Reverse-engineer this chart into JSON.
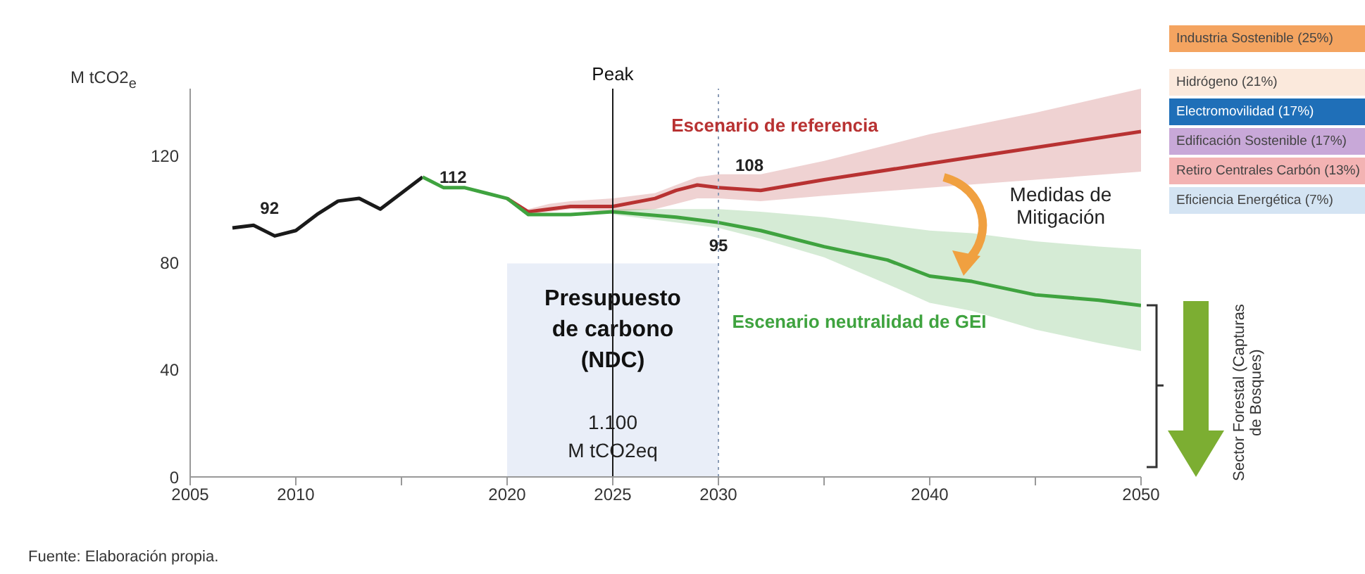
{
  "chart_data": [
    {
      "type": "line",
      "ylabel": "M tCO2$_{e}$",
      "xlim": [
        2005,
        2050
      ],
      "xticks": [
        2005,
        2010,
        {
          "value": 2015,
          "label": null
        },
        2020,
        2025,
        2030,
        {
          "value": 2035,
          "label": null
        },
        2040,
        {
          "value": 2045,
          "label": null
        },
        2050
      ],
      "ylim": [
        0,
        145
      ],
      "yticks": [
        0,
        40,
        80,
        120
      ],
      "series": [
        {
          "color": "#1a1a1a",
          "x": [
            2007,
            2008,
            2009,
            2010,
            2011,
            2012,
            2013,
            2014,
            2015,
            2016
          ],
          "values": [
            93,
            94,
            90,
            92,
            98,
            103,
            104,
            100,
            106,
            112
          ]
        },
        {
          "name": "Escenario de referencia",
          "color": "#b83232",
          "x": [
            2020,
            2021,
            2022,
            2023,
            2025,
            2027,
            2028,
            2029,
            2030,
            2032,
            2035,
            2040,
            2045,
            2050
          ],
          "values": [
            104,
            99,
            100,
            101,
            101,
            104,
            107,
            109,
            108,
            107,
            111,
            117,
            123,
            129
          ],
          "lower": [
            null,
            98,
            99,
            100,
            99,
            100,
            102,
            104,
            104,
            103,
            105,
            108,
            111,
            114
          ],
          "upper": [
            null,
            100,
            102,
            103,
            104,
            106,
            109,
            112,
            113,
            113,
            118,
            128,
            136,
            145
          ]
        },
        {
          "name": "Escenario neutralidad de GEI",
          "color": "#3fa33f",
          "x": [
            2016,
            2017,
            2018,
            2019,
            2020,
            2021,
            2023,
            2025,
            2028,
            2030,
            2032,
            2035,
            2038,
            2040,
            2042,
            2045,
            2048,
            2050
          ],
          "values": [
            112,
            108,
            108,
            106,
            104,
            98,
            98,
            99,
            97,
            95,
            92,
            86,
            81,
            75,
            73,
            68,
            66,
            64
          ],
          "lower": [
            null,
            null,
            null,
            null,
            null,
            null,
            null,
            98,
            95,
            93,
            89,
            82,
            72,
            65,
            62,
            55,
            50,
            47
          ],
          "upper": [
            null,
            null,
            null,
            null,
            null,
            null,
            null,
            100,
            100,
            100,
            99,
            97,
            94,
            92,
            91,
            88,
            86,
            85
          ]
        }
      ],
      "bands": [
        {
          "axis": "x",
          "from": 2020,
          "to": 2030,
          "label": "Presupuesto de carbono (NDC)",
          "color": "#e9eef8"
        }
      ],
      "ref_lines": [
        {
          "axis": "x",
          "value": 2025,
          "label": "Peak",
          "color": "#1a1a1a",
          "line_style": "solid"
        },
        {
          "axis": "x",
          "value": 2030,
          "label": null,
          "color": "#8a9bb5",
          "line_style": "dotted"
        }
      ],
      "annotations": [
        {
          "text": "92",
          "x": 2010,
          "y": 92
        },
        {
          "text": "112",
          "x": 2016,
          "y": 112
        },
        {
          "text": "108",
          "x": 2030,
          "y": 108
        },
        {
          "text": "95",
          "x": 2030,
          "y": 95
        },
        "1.100 M tCO2eq",
        "Medidas de Mitigación",
        "Sector Forestal (Capturas de Bosques)",
        "Fuente: Elaboración propia."
      ]
    },
    {
      "type": "other",
      "categories": [
        "Industria Sostenible (25%)",
        "Hidrógeno (21%)",
        "Electromovilidad (17%)",
        "Edificación Sostenible (17%)",
        "Retiro Centrales Carbón (13%)",
        "Eficiencia Energética (7%)"
      ],
      "colors": [
        "#f4a460",
        "#fbe9dc",
        "#1f6fb8",
        "#c8a8d8",
        "#f3b3b3",
        "#d4e4f3"
      ]
    }
  ]
}
